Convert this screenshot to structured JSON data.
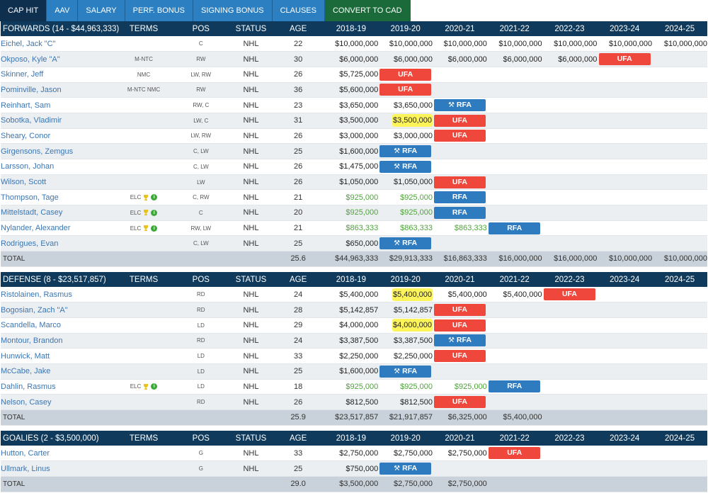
{
  "tabs": [
    "CAP HIT",
    "AAV",
    "SALARY",
    "PERF. BONUS",
    "SIGNING BONUS",
    "CLAUSES",
    "CONVERT TO CAD"
  ],
  "columns": {
    "terms": "TERMS",
    "pos": "POS",
    "status": "STATUS",
    "age": "AGE",
    "years": [
      "2018-19",
      "2019-20",
      "2020-21",
      "2021-22",
      "2022-23",
      "2023-24",
      "2024-25"
    ]
  },
  "sections": [
    {
      "title": "FORWARDS (14 - $44,963,333)",
      "players": [
        {
          "name": "Eichel, Jack \"C\"",
          "terms": "",
          "pos": "C",
          "status": "NHL",
          "age": "22",
          "cells": [
            {
              "v": "$10,000,000"
            },
            {
              "v": "$10,000,000"
            },
            {
              "v": "$10,000,000"
            },
            {
              "v": "$10,000,000"
            },
            {
              "v": "$10,000,000"
            },
            {
              "v": "$10,000,000"
            },
            {
              "v": "$10,000,000"
            }
          ]
        },
        {
          "name": "Okposo, Kyle \"A\"",
          "terms": "M-NTC",
          "pos": "RW",
          "status": "NHL",
          "age": "30",
          "cells": [
            {
              "v": "$6,000,000"
            },
            {
              "v": "$6,000,000"
            },
            {
              "v": "$6,000,000"
            },
            {
              "v": "$6,000,000"
            },
            {
              "v": "$6,000,000"
            },
            {
              "b": "UFA"
            },
            {}
          ]
        },
        {
          "name": "Skinner, Jeff",
          "terms": "NMC",
          "pos": "LW, RW",
          "status": "NHL",
          "age": "26",
          "cells": [
            {
              "v": "$5,725,000"
            },
            {
              "b": "UFA"
            },
            {},
            {},
            {},
            {},
            {}
          ]
        },
        {
          "name": "Pominville, Jason",
          "terms": "M-NTC NMC",
          "pos": "RW",
          "status": "NHL",
          "age": "36",
          "cells": [
            {
              "v": "$5,600,000"
            },
            {
              "b": "UFA"
            },
            {},
            {},
            {},
            {},
            {}
          ]
        },
        {
          "name": "Reinhart, Sam",
          "terms": "",
          "pos": "RW, C",
          "status": "NHL",
          "age": "23",
          "cells": [
            {
              "v": "$3,650,000"
            },
            {
              "v": "$3,650,000"
            },
            {
              "b": "RFA",
              "arb": true
            },
            {},
            {},
            {},
            {}
          ]
        },
        {
          "name": "Sobotka, Vladimir",
          "terms": "",
          "pos": "LW, C",
          "status": "NHL",
          "age": "31",
          "cells": [
            {
              "v": "$3,500,000"
            },
            {
              "v": "$3,500,000",
              "hl": true
            },
            {
              "b": "UFA"
            },
            {},
            {},
            {},
            {}
          ]
        },
        {
          "name": "Sheary, Conor",
          "terms": "",
          "pos": "LW, RW",
          "status": "NHL",
          "age": "26",
          "cells": [
            {
              "v": "$3,000,000"
            },
            {
              "v": "$3,000,000"
            },
            {
              "b": "UFA"
            },
            {},
            {},
            {},
            {}
          ]
        },
        {
          "name": "Girgensons, Zemgus",
          "terms": "",
          "pos": "C, LW",
          "status": "NHL",
          "age": "25",
          "cells": [
            {
              "v": "$1,600,000"
            },
            {
              "b": "RFA",
              "arb": true
            },
            {},
            {},
            {},
            {},
            {}
          ]
        },
        {
          "name": "Larsson, Johan",
          "terms": "",
          "pos": "C, LW",
          "status": "NHL",
          "age": "26",
          "cells": [
            {
              "v": "$1,475,000"
            },
            {
              "b": "RFA",
              "arb": true
            },
            {},
            {},
            {},
            {},
            {}
          ]
        },
        {
          "name": "Wilson, Scott",
          "terms": "",
          "pos": "LW",
          "status": "NHL",
          "age": "26",
          "cells": [
            {
              "v": "$1,050,000"
            },
            {
              "v": "$1,050,000"
            },
            {
              "b": "UFA"
            },
            {},
            {},
            {},
            {}
          ]
        },
        {
          "name": "Thompson, Tage",
          "terms": "ELC",
          "pos": "C, RW",
          "status": "NHL",
          "age": "21",
          "cells": [
            {
              "v": "$925,000",
              "elc": true
            },
            {
              "v": "$925,000",
              "elc": true
            },
            {
              "b": "RFA"
            },
            {},
            {},
            {},
            {}
          ]
        },
        {
          "name": "Mittelstadt, Casey",
          "terms": "ELC",
          "pos": "C",
          "status": "NHL",
          "age": "20",
          "cells": [
            {
              "v": "$925,000",
              "elc": true
            },
            {
              "v": "$925,000",
              "elc": true
            },
            {
              "b": "RFA"
            },
            {},
            {},
            {},
            {}
          ]
        },
        {
          "name": "Nylander, Alexander",
          "terms": "ELC",
          "pos": "RW, LW",
          "status": "NHL",
          "age": "21",
          "cells": [
            {
              "v": "$863,333",
              "elc": true
            },
            {
              "v": "$863,333",
              "elc": true
            },
            {
              "v": "$863,333",
              "elc": true
            },
            {
              "b": "RFA"
            },
            {},
            {},
            {}
          ]
        },
        {
          "name": "Rodrigues, Evan",
          "terms": "",
          "pos": "C, LW",
          "status": "NHL",
          "age": "25",
          "cells": [
            {
              "v": "$650,000"
            },
            {
              "b": "RFA",
              "arb": true
            },
            {},
            {},
            {},
            {},
            {}
          ]
        }
      ],
      "total": {
        "label": "TOTAL",
        "age": "25.6",
        "values": [
          "$44,963,333",
          "$29,913,333",
          "$16,863,333",
          "$16,000,000",
          "$16,000,000",
          "$10,000,000",
          "$10,000,000"
        ]
      }
    },
    {
      "title": "DEFENSE (8 - $23,517,857)",
      "players": [
        {
          "name": "Ristolainen, Rasmus",
          "terms": "",
          "pos": "RD",
          "status": "NHL",
          "age": "24",
          "cells": [
            {
              "v": "$5,400,000"
            },
            {
              "v": "$5,400,000",
              "hl": true
            },
            {
              "v": "$5,400,000"
            },
            {
              "v": "$5,400,000"
            },
            {
              "b": "UFA"
            },
            {},
            {}
          ]
        },
        {
          "name": "Bogosian, Zach \"A\"",
          "terms": "",
          "pos": "RD",
          "status": "NHL",
          "age": "28",
          "cells": [
            {
              "v": "$5,142,857"
            },
            {
              "v": "$5,142,857"
            },
            {
              "b": "UFA"
            },
            {},
            {},
            {},
            {}
          ]
        },
        {
          "name": "Scandella, Marco",
          "terms": "",
          "pos": "LD",
          "status": "NHL",
          "age": "29",
          "cells": [
            {
              "v": "$4,000,000"
            },
            {
              "v": "$4,000,000",
              "hl": true
            },
            {
              "b": "UFA"
            },
            {},
            {},
            {},
            {}
          ]
        },
        {
          "name": "Montour, Brandon",
          "terms": "",
          "pos": "RD",
          "status": "NHL",
          "age": "24",
          "cells": [
            {
              "v": "$3,387,500"
            },
            {
              "v": "$3,387,500"
            },
            {
              "b": "RFA",
              "arb": true
            },
            {},
            {},
            {},
            {}
          ]
        },
        {
          "name": "Hunwick, Matt",
          "terms": "",
          "pos": "LD",
          "status": "NHL",
          "age": "33",
          "cells": [
            {
              "v": "$2,250,000"
            },
            {
              "v": "$2,250,000"
            },
            {
              "b": "UFA"
            },
            {},
            {},
            {},
            {}
          ]
        },
        {
          "name": "McCabe, Jake",
          "terms": "",
          "pos": "LD",
          "status": "NHL",
          "age": "25",
          "cells": [
            {
              "v": "$1,600,000"
            },
            {
              "b": "RFA",
              "arb": true
            },
            {},
            {},
            {},
            {},
            {}
          ]
        },
        {
          "name": "Dahlin, Rasmus",
          "terms": "ELC",
          "pos": "LD",
          "status": "NHL",
          "age": "18",
          "cells": [
            {
              "v": "$925,000",
              "elc": true
            },
            {
              "v": "$925,000",
              "elc": true
            },
            {
              "v": "$925,000",
              "elc": true
            },
            {
              "b": "RFA"
            },
            {},
            {},
            {}
          ]
        },
        {
          "name": "Nelson, Casey",
          "terms": "",
          "pos": "RD",
          "status": "NHL",
          "age": "26",
          "cells": [
            {
              "v": "$812,500"
            },
            {
              "v": "$812,500"
            },
            {
              "b": "UFA"
            },
            {},
            {},
            {},
            {}
          ]
        }
      ],
      "total": {
        "label": "TOTAL",
        "age": "25.9",
        "values": [
          "$23,517,857",
          "$21,917,857",
          "$6,325,000",
          "$5,400,000",
          "",
          "",
          ""
        ]
      }
    },
    {
      "title": "GOALIES (2 - $3,500,000)",
      "players": [
        {
          "name": "Hutton, Carter",
          "terms": "",
          "pos": "G",
          "status": "NHL",
          "age": "33",
          "cells": [
            {
              "v": "$2,750,000"
            },
            {
              "v": "$2,750,000"
            },
            {
              "v": "$2,750,000"
            },
            {
              "b": "UFA"
            },
            {},
            {},
            {}
          ]
        },
        {
          "name": "Ullmark, Linus",
          "terms": "",
          "pos": "G",
          "status": "NHL",
          "age": "25",
          "cells": [
            {
              "v": "$750,000"
            },
            {
              "b": "RFA",
              "arb": true
            },
            {},
            {},
            {},
            {},
            {}
          ]
        }
      ],
      "total": {
        "label": "TOTAL",
        "age": "29.0",
        "values": [
          "$3,500,000",
          "$2,750,000",
          "$2,750,000",
          "",
          "",
          "",
          ""
        ]
      }
    }
  ],
  "icons": {
    "elc_trophy": "trophy-icon",
    "elc_info": "info-icon",
    "arbitration": "gavel-icon"
  },
  "colors": {
    "ufa": "#f0473c",
    "rfa": "#2f7bbf",
    "elc_text": "#4ea43a",
    "highlight": "#fdf45a",
    "header": "#0f3a5c"
  }
}
